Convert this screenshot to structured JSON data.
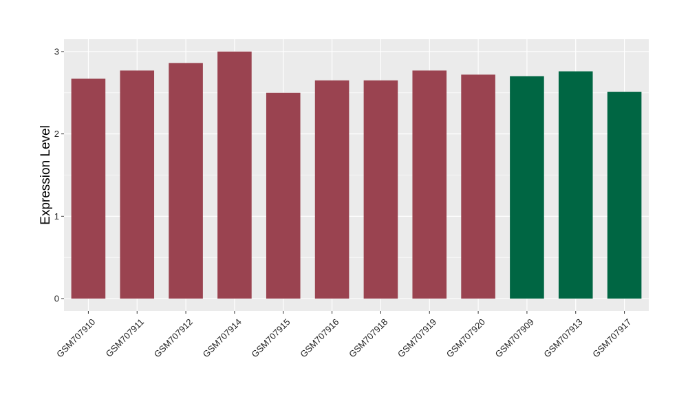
{
  "chart_data": {
    "type": "bar",
    "title": "",
    "xlabel": "",
    "ylabel": "Expression Level",
    "ylim": [
      -0.15,
      3.15
    ],
    "yticks": [
      0,
      1,
      2,
      3
    ],
    "ytick_labels": [
      "0",
      "1",
      "2",
      "3"
    ],
    "grid": true,
    "legend": "none",
    "categories": [
      "GSM707910",
      "GSM707911",
      "GSM707912",
      "GSM707914",
      "GSM707915",
      "GSM707916",
      "GSM707918",
      "GSM707919",
      "GSM707920",
      "GSM707909",
      "GSM707913",
      "GSM707917"
    ],
    "values": [
      2.67,
      2.77,
      2.86,
      3.0,
      2.5,
      2.65,
      2.65,
      2.77,
      2.72,
      2.7,
      2.76,
      2.51
    ],
    "bar_colors": [
      "#9a4350",
      "#9a4350",
      "#9a4350",
      "#9a4350",
      "#9a4350",
      "#9a4350",
      "#9a4350",
      "#9a4350",
      "#9a4350",
      "#006643",
      "#006643",
      "#006643"
    ],
    "panel_background": "#ebebeb",
    "grid_color": "#ffffff"
  }
}
